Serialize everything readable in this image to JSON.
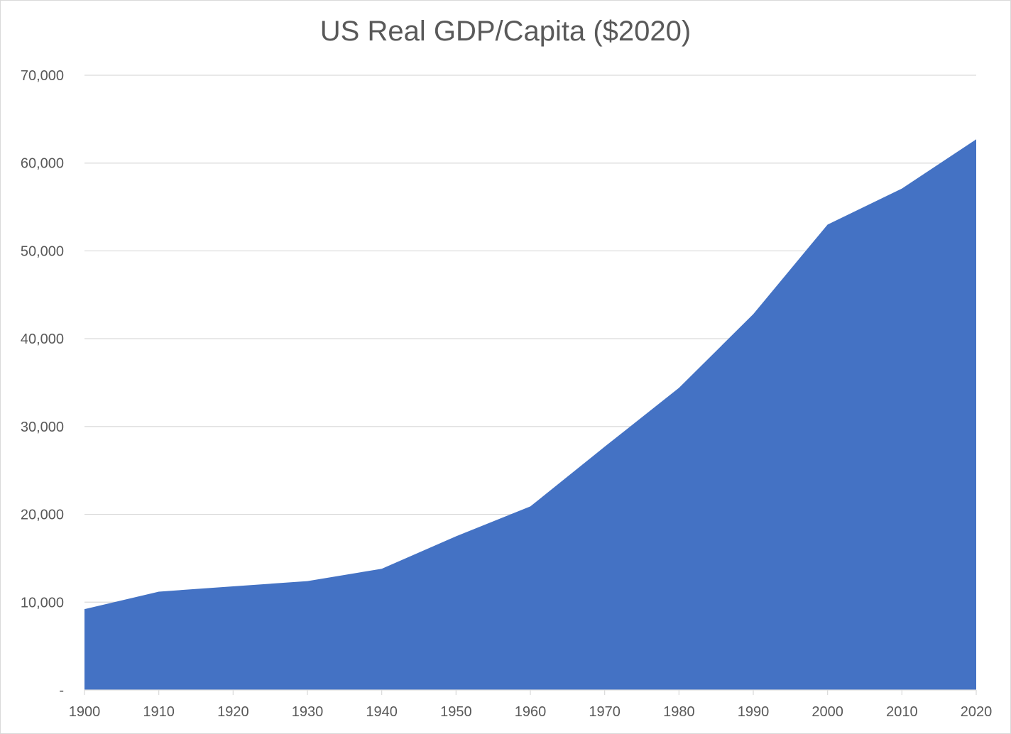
{
  "chart_data": {
    "type": "area",
    "title": "US Real GDP/Capita ($2020)",
    "xlabel": "",
    "ylabel": "",
    "x": [
      1900,
      1910,
      1920,
      1930,
      1940,
      1950,
      1960,
      1970,
      1980,
      1990,
      2000,
      2010,
      2020
    ],
    "series": [
      {
        "values": [
          9200,
          11200,
          11800,
          12400,
          13800,
          17500,
          20900,
          27700,
          34400,
          42800,
          53000,
          57100,
          62700
        ],
        "color": "#4472c4"
      }
    ],
    "ylim": [
      0,
      70000
    ],
    "yticks": [
      0,
      10000,
      20000,
      30000,
      40000,
      50000,
      60000,
      70000
    ],
    "ytick_labels": [
      "-",
      "10,000",
      "20,000",
      "30,000",
      "40,000",
      "50,000",
      "60,000",
      "70,000"
    ],
    "xtick_labels": [
      "1900",
      "1910",
      "1920",
      "1930",
      "1940",
      "1950",
      "1960",
      "1970",
      "1980",
      "1990",
      "2000",
      "2010",
      "2020"
    ],
    "grid": true,
    "legend": "none",
    "colors": {
      "area": "#4472c4",
      "grid": "#d9d9d9",
      "text": "#595959"
    }
  }
}
